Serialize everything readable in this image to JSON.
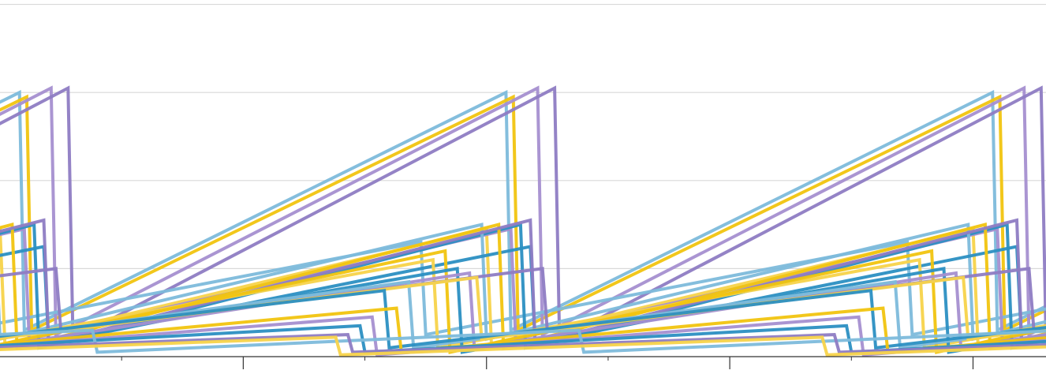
{
  "chart_data": {
    "type": "line",
    "title": "",
    "xlabel": "",
    "ylabel": "",
    "grid": true,
    "legend": "none",
    "x_range": [
      0,
      4.3
    ],
    "y_range": [
      0,
      4.05
    ],
    "y_gridlines": [
      1,
      2,
      3,
      4
    ],
    "x_major_ticks": [
      1,
      2,
      3,
      4
    ],
    "x_minor_ticks": [
      0.5,
      1.5,
      2.5,
      3.5
    ],
    "period": 2,
    "palette": [
      "#8e7cc3",
      "#a58fd0",
      "#7dbbdb",
      "#2b8fc2",
      "#f1c40f",
      "#f7d34a"
    ],
    "series": [
      {
        "color": "#7dbbdb",
        "values": [
          0.3,
          3.0,
          0.3,
          3.0,
          0.3,
          3.0
        ],
        "drop_offset": 0.0
      },
      {
        "color": "#f1c40f",
        "values": [
          0.3,
          2.95,
          0.3,
          2.95,
          0.3,
          2.95
        ],
        "drop_offset": 0.03
      },
      {
        "color": "#a58fd0",
        "values": [
          0.25,
          3.05,
          0.25,
          3.05,
          0.25,
          3.05
        ],
        "drop_offset": 0.13
      },
      {
        "color": "#8e7cc3",
        "values": [
          0.2,
          3.05,
          0.2,
          3.05,
          0.2,
          3.05
        ],
        "drop_offset": 0.2
      },
      {
        "color": "#7dbbdb",
        "values": [
          0.25,
          1.3,
          0.25,
          1.3,
          0.25,
          1.3
        ],
        "drop_offset": -0.35
      },
      {
        "color": "#f7d34a",
        "values": [
          0.15,
          1.45,
          0.15,
          1.45,
          0.15,
          1.45
        ],
        "drop_offset": -0.08
      },
      {
        "color": "#a58fd0",
        "values": [
          0.2,
          1.45,
          0.2,
          1.45,
          0.2,
          1.45
        ],
        "drop_offset": 0.02
      },
      {
        "color": "#2b8fc2",
        "values": [
          0.1,
          1.5,
          0.1,
          1.5,
          0.1,
          1.5
        ],
        "drop_offset": 0.06
      },
      {
        "color": "#7dbbdb",
        "values": [
          0.2,
          1.5,
          0.2,
          1.5,
          0.2,
          1.5
        ],
        "drop_offset": -0.1
      },
      {
        "color": "#2b8fc2",
        "values": [
          0.15,
          1.25,
          0.15,
          1.25,
          0.15,
          1.25
        ],
        "drop_offset": 0.1
      },
      {
        "color": "#f1c40f",
        "values": [
          0.1,
          1.5,
          0.1,
          1.5,
          0.1,
          1.5
        ],
        "drop_offset": -0.03
      },
      {
        "color": "#8e7cc3",
        "values": [
          0.15,
          1.55,
          0.15,
          1.55,
          0.15,
          1.55
        ],
        "drop_offset": 0.1
      },
      {
        "color": "#f7d34a",
        "values": [
          0.1,
          1.1,
          0.1,
          1.1,
          0.1,
          1.1
        ],
        "drop_offset": -0.3
      },
      {
        "color": "#f1c40f",
        "values": [
          0.05,
          1.2,
          0.05,
          1.2,
          0.05,
          1.2
        ],
        "drop_offset": -0.25
      },
      {
        "color": "#2b8fc2",
        "values": [
          0.05,
          1.0,
          0.05,
          1.0,
          0.05,
          1.0
        ],
        "drop_offset": -0.2
      },
      {
        "color": "#a58fd0",
        "values": [
          0.1,
          0.95,
          0.1,
          0.95,
          0.1,
          0.95
        ],
        "drop_offset": -0.15
      },
      {
        "color": "#8e7cc3",
        "values": [
          0.3,
          1.0,
          0.3,
          1.0,
          0.3,
          1.0
        ],
        "drop_offset": 0.15
      },
      {
        "color": "#7dbbdb",
        "values": [
          0.1,
          0.85,
          0.1,
          0.85,
          0.1,
          0.85
        ],
        "drop_offset": -0.4
      },
      {
        "color": "#f7d34a",
        "values": [
          0.2,
          0.9,
          0.2,
          0.9,
          0.2,
          0.9
        ],
        "drop_offset": -0.12
      },
      {
        "color": "#2b8fc2",
        "values": [
          0.1,
          0.75,
          0.1,
          0.75,
          0.1,
          0.75
        ],
        "drop_offset": -0.5
      },
      {
        "color": "#f1c40f",
        "values": [
          0.05,
          0.55,
          0.05,
          0.55,
          0.05,
          0.55
        ],
        "drop_offset": -0.45
      },
      {
        "color": "#a58fd0",
        "values": [
          0.02,
          0.45,
          0.02,
          0.45,
          0.02,
          0.45
        ],
        "drop_offset": -0.55
      },
      {
        "color": "#2b8fc2",
        "values": [
          0.05,
          0.35,
          0.05,
          0.35,
          0.05,
          0.35
        ],
        "drop_offset": -0.6
      },
      {
        "color": "#7dbbdb",
        "values": [
          0.05,
          0.3,
          0.05,
          0.3,
          0.05,
          0.3
        ],
        "drop_offset": 0.3
      },
      {
        "color": "#8e7cc3",
        "values": [
          0.05,
          0.25,
          0.05,
          0.25,
          0.05,
          0.25
        ],
        "drop_offset": -0.65
      },
      {
        "color": "#f7d34a",
        "values": [
          0.02,
          0.22,
          0.02,
          0.22,
          0.02,
          0.22
        ],
        "drop_offset": -0.7
      }
    ]
  }
}
